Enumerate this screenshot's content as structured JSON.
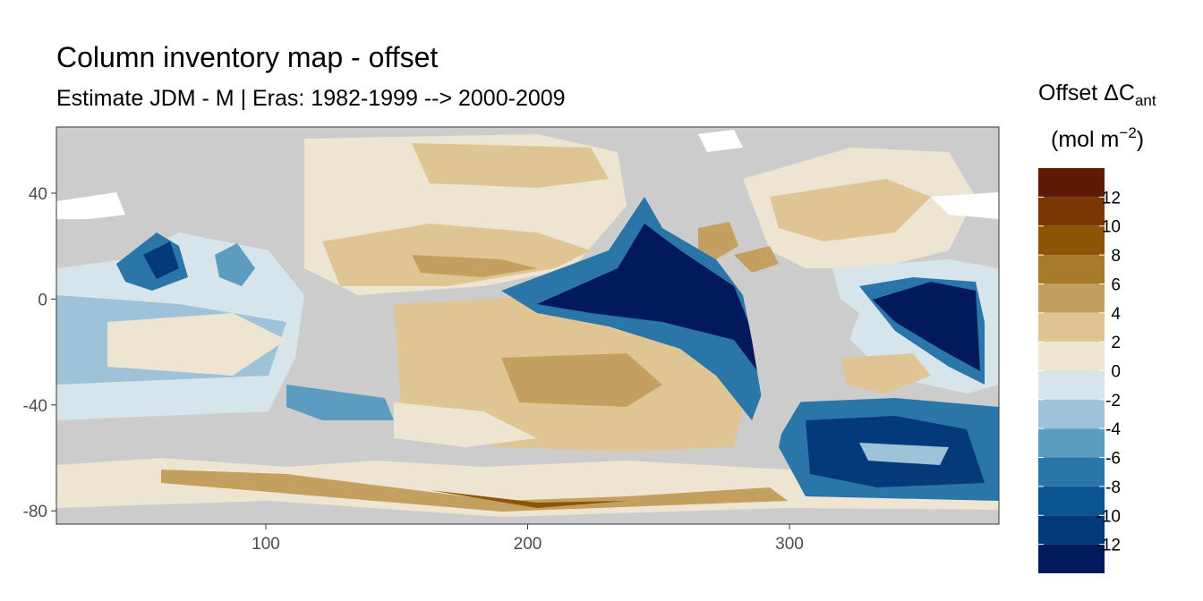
{
  "chart_data": {
    "type": "heatmap",
    "title": "Column inventory map - offset",
    "subtitle": "Estimate JDM - M | Eras: 1982-1999 --> 2000-2009",
    "x_ticks": [
      "100",
      "200",
      "300"
    ],
    "x_tick_values": [
      100,
      200,
      300
    ],
    "y_ticks": [
      "40",
      "0",
      "-40",
      "-80"
    ],
    "y_tick_values": [
      40,
      0,
      -40,
      -80
    ],
    "xlim": [
      20,
      380
    ],
    "ylim": [
      -85,
      65
    ],
    "legend": {
      "title_main": "Offset ΔC",
      "title_sub": "ant",
      "unit_open": "(mol m",
      "unit_sup": "−2",
      "unit_close": ")",
      "placement": "right",
      "ticks": [
        "12",
        "10",
        "8",
        "6",
        "4",
        "2",
        "0",
        "-2",
        "-4",
        "-6",
        "-8",
        "-10",
        "-12"
      ],
      "bins": [
        {
          "range": [
            12,
            14
          ],
          "color": "#5e1a02"
        },
        {
          "range": [
            10,
            12
          ],
          "color": "#7a3704"
        },
        {
          "range": [
            8,
            10
          ],
          "color": "#8c5405"
        },
        {
          "range": [
            6,
            8
          ],
          "color": "#a87a2a"
        },
        {
          "range": [
            4,
            6
          ],
          "color": "#c4a060"
        },
        {
          "range": [
            2,
            4
          ],
          "color": "#dfc593"
        },
        {
          "range": [
            0,
            2
          ],
          "color": "#ede4d2"
        },
        {
          "range": [
            -2,
            0
          ],
          "color": "#d6e5ec"
        },
        {
          "range": [
            -4,
            -2
          ],
          "color": "#9ec3d9"
        },
        {
          "range": [
            -6,
            -4
          ],
          "color": "#5b9cc0"
        },
        {
          "range": [
            -8,
            -6
          ],
          "color": "#2a76a8"
        },
        {
          "range": [
            -10,
            -8
          ],
          "color": "#0b5690"
        },
        {
          "range": [
            -12,
            -10
          ],
          "color": "#053a7a"
        },
        {
          "range": [
            -14,
            -12
          ],
          "color": "#021a5c"
        }
      ]
    },
    "land_color": "#cccccc"
  }
}
